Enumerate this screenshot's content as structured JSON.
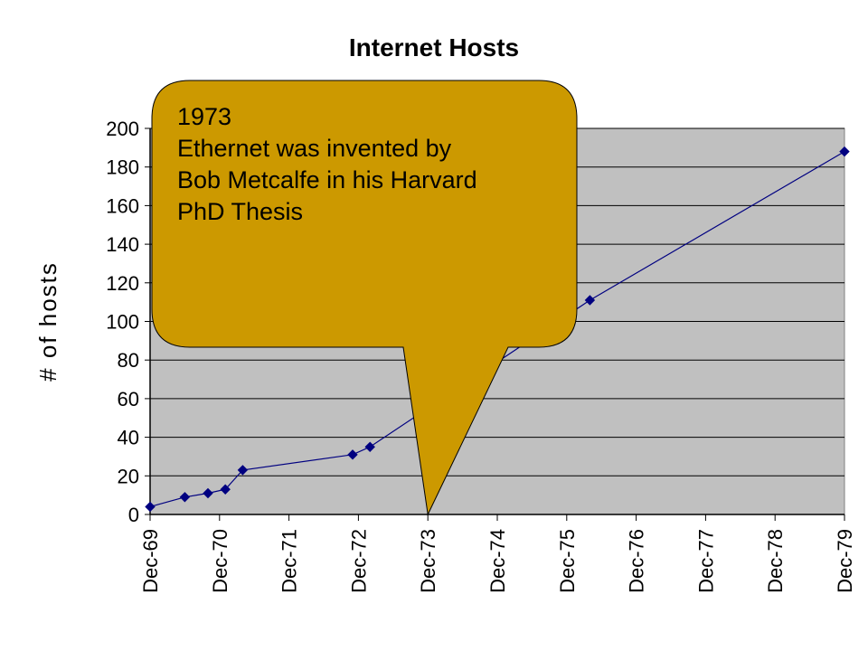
{
  "chart_data": {
    "type": "line",
    "title": "Internet Hosts",
    "xlabel": "",
    "ylabel": "# of hosts",
    "ylim": [
      0,
      200
    ],
    "yticks": [
      0,
      20,
      40,
      60,
      80,
      100,
      120,
      140,
      160,
      180,
      200
    ],
    "xticks": [
      "Dec-69",
      "Dec-70",
      "Dec-71",
      "Dec-72",
      "Dec-73",
      "Dec-74",
      "Dec-75",
      "Dec-76",
      "Dec-77",
      "Dec-78",
      "Dec-79"
    ],
    "grid": true,
    "series": [
      {
        "color": "#000080",
        "points": [
          {
            "x": "1969-12",
            "y": 4
          },
          {
            "x": "1970-06",
            "y": 9
          },
          {
            "x": "1970-10",
            "y": 11
          },
          {
            "x": "1971-01",
            "y": 13
          },
          {
            "x": "1971-04",
            "y": 23
          },
          {
            "x": "1972-11",
            "y": 31
          },
          {
            "x": "1973-02",
            "y": 35
          },
          {
            "x": "1976-04",
            "y": 111
          },
          {
            "x": "1979-12",
            "y": 188
          }
        ]
      }
    ],
    "annotation": {
      "lines": [
        "1973",
        "Ethernet was invented by",
        "Bob Metcalfe  in his Harvard",
        "PhD Thesis"
      ],
      "points_to": "Dec-73",
      "fill": "#cc9900"
    },
    "colors": {
      "plot_background": "#c0c0c0",
      "marker": "#000080"
    }
  }
}
